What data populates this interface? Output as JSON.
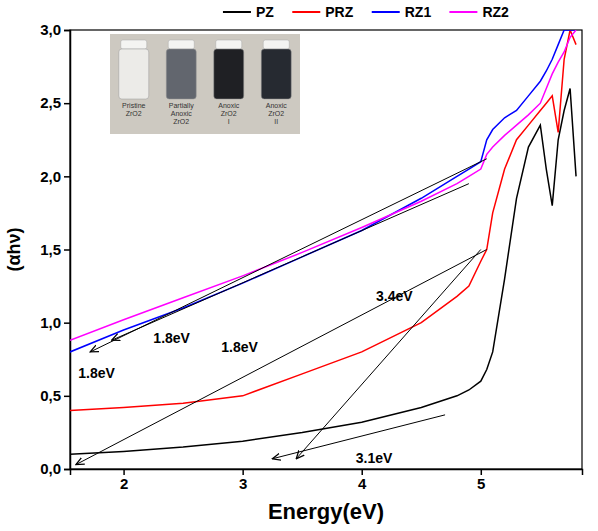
{
  "chart_data": {
    "type": "line",
    "x_label": "Energy(eV)",
    "y_label": "(αhν)",
    "x": [
      1.55,
      2.0,
      2.5,
      3.0,
      3.5,
      4.0,
      4.5,
      4.8,
      4.9,
      5.0,
      5.05,
      5.1,
      5.2,
      5.3,
      5.4,
      5.5,
      5.55,
      5.6,
      5.65,
      5.7,
      5.75,
      5.8
    ],
    "series": [
      {
        "name": "PZ",
        "color": "#000000",
        "values": [
          0.1,
          0.12,
          0.15,
          0.19,
          0.25,
          0.32,
          0.42,
          0.5,
          0.54,
          0.6,
          0.68,
          0.8,
          1.3,
          1.85,
          2.2,
          2.35,
          2.05,
          1.8,
          2.25,
          2.45,
          2.6,
          2.0
        ]
      },
      {
        "name": "PRZ",
        "color": "#ff0000",
        "values": [
          0.4,
          0.42,
          0.45,
          0.5,
          0.65,
          0.8,
          1.0,
          1.18,
          1.25,
          1.42,
          1.5,
          1.75,
          2.05,
          2.25,
          2.35,
          2.45,
          2.5,
          2.55,
          2.3,
          2.8,
          3.0,
          2.9
        ]
      },
      {
        "name": "RZ1",
        "color": "#0000ff",
        "values": [
          0.8,
          0.95,
          1.1,
          1.27,
          1.45,
          1.63,
          1.85,
          2.0,
          2.05,
          2.1,
          2.25,
          2.32,
          2.4,
          2.45,
          2.55,
          2.65,
          2.72,
          2.8,
          2.9,
          3.0,
          3.0,
          3.0
        ]
      },
      {
        "name": "RZ2",
        "color": "#ff00ff",
        "values": [
          0.88,
          1.02,
          1.17,
          1.32,
          1.48,
          1.65,
          1.83,
          1.95,
          2.0,
          2.05,
          2.15,
          2.2,
          2.28,
          2.35,
          2.42,
          2.5,
          2.6,
          2.7,
          2.78,
          2.85,
          2.95,
          3.0
        ]
      }
    ],
    "tangents": [
      {
        "x": [
          5.05,
          1.72
        ],
        "y": [
          2.12,
          0.8
        ]
      },
      {
        "x": [
          4.9,
          1.9
        ],
        "y": [
          1.95,
          0.88
        ]
      },
      {
        "x": [
          5.05,
          1.6
        ],
        "y": [
          1.5,
          0.03
        ]
      },
      {
        "x": [
          5.0,
          3.45
        ],
        "y": [
          1.5,
          0.07
        ]
      },
      {
        "x": [
          4.7,
          3.25
        ],
        "y": [
          0.37,
          0.07
        ]
      }
    ],
    "annotations": [
      {
        "text": "1.8eV",
        "x": 2.25,
        "y": 0.86
      },
      {
        "text": "1.8eV",
        "x": 1.62,
        "y": 0.62
      },
      {
        "text": "1.8eV",
        "x": 2.82,
        "y": 0.8
      },
      {
        "text": "3.4eV",
        "x": 4.12,
        "y": 1.15
      },
      {
        "text": "3.1eV",
        "x": 3.95,
        "y": 0.04
      }
    ],
    "inset": {
      "labels": [
        [
          "Pristine",
          "ZrO2"
        ],
        [
          "Partially",
          "Anoxic",
          "ZrO2"
        ],
        [
          "Anoxic",
          "ZrO2",
          "I"
        ],
        [
          "Anoxic",
          "ZrO2",
          "II"
        ]
      ]
    },
    "xlim": [
      1.55,
      5.85
    ],
    "ylim": [
      0,
      3.0
    ],
    "xticks": [
      2,
      3,
      4,
      5
    ],
    "yticks": [
      {
        "value": 0,
        "label": "0,0"
      },
      {
        "value": 0.5,
        "label": "0,5"
      },
      {
        "value": 1.0,
        "label": "1,0"
      },
      {
        "value": 1.5,
        "label": "1,5"
      },
      {
        "value": 2.0,
        "label": "2,0"
      },
      {
        "value": 2.5,
        "label": "2,5"
      },
      {
        "value": 3.0,
        "label": "3,0"
      }
    ],
    "grid": false,
    "legend": "top"
  }
}
